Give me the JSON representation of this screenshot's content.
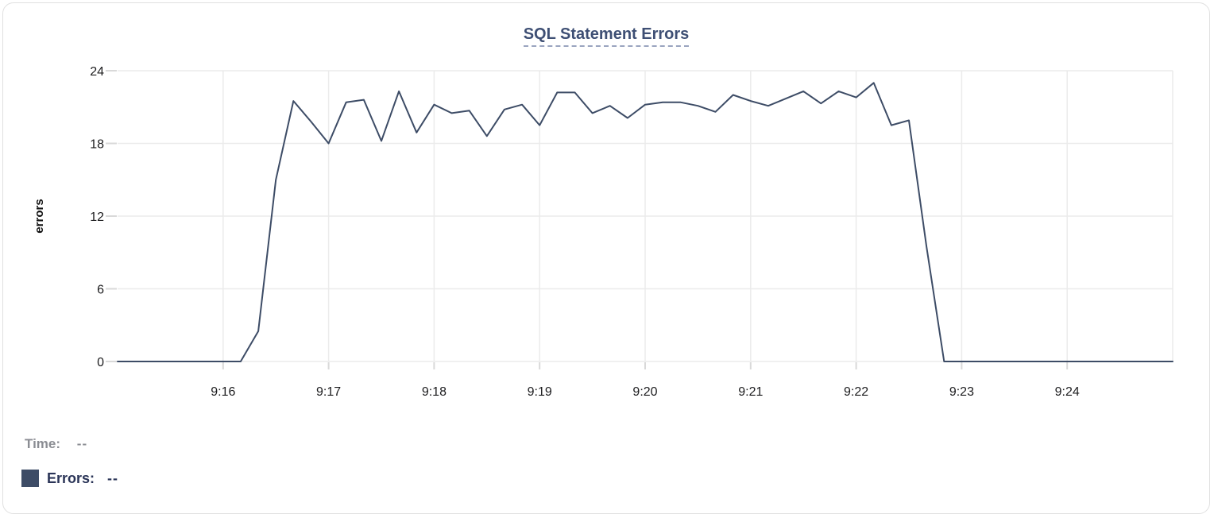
{
  "chart_data": {
    "type": "line",
    "title": "SQL Statement Errors",
    "xlabel": "",
    "ylabel": "errors",
    "ylim": [
      0,
      24
    ],
    "yticks": [
      0,
      6,
      12,
      18,
      24
    ],
    "x_tick_labels": [
      "9:16",
      "9:17",
      "9:18",
      "9:19",
      "9:20",
      "9:21",
      "9:22",
      "9:23",
      "9:24"
    ],
    "x_domain": [
      "9:15:00",
      "9:25:00"
    ],
    "interval_seconds": 10,
    "grid": true,
    "legend_position": "bottom-left",
    "series": [
      {
        "name": "Errors",
        "color": "#3d4c66",
        "x_start": "9:15:00",
        "values": [
          0,
          0,
          0,
          0,
          0,
          0,
          0,
          0,
          2.5,
          15,
          21.5,
          19.8,
          18,
          21.4,
          21.6,
          18.2,
          22.3,
          18.9,
          21.2,
          20.5,
          20.7,
          18.6,
          20.8,
          21.2,
          19.5,
          22.2,
          22.2,
          20.5,
          21.1,
          20.1,
          21.2,
          21.4,
          21.4,
          21.1,
          20.6,
          22,
          21.5,
          21.1,
          21.7,
          22.3,
          21.3,
          22.3,
          21.8,
          23,
          19.5,
          19.9,
          9.5,
          0,
          0,
          0,
          0,
          0,
          0,
          0,
          0,
          0,
          0,
          0,
          0,
          0,
          0
        ]
      }
    ]
  },
  "legend": {
    "time_label": "Time:",
    "time_value": "--",
    "series_label": "Errors:",
    "series_value": "--"
  },
  "colors": {
    "line": "#3d4c66",
    "title": "#3e4f74",
    "title_underline": "#9aa4bf",
    "gridline": "#ebebeb",
    "tick": "#d9d9d9",
    "axis_text": "#1c1c1e",
    "time_text": "#8b8d93",
    "errors_text": "#2a3457",
    "card_border": "#e0e0e0"
  }
}
